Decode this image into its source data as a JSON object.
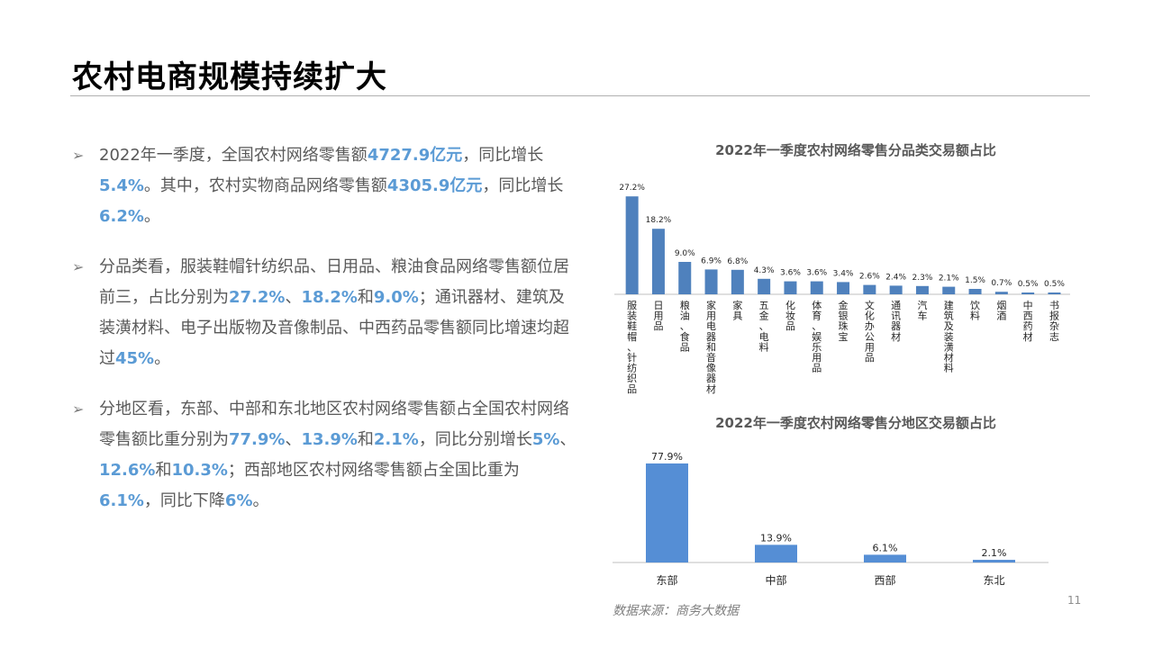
{
  "slide": {
    "title": "农村电商规模持续扩大",
    "page_number": "11",
    "source": "数据来源：商务大数据"
  },
  "bullets": [
    {
      "segments": [
        {
          "text": "2022年一季度，全国农村网络零售额"
        },
        {
          "text": "4727.9亿元",
          "hl": true
        },
        {
          "text": "，同比增长"
        },
        {
          "text": "5.4%",
          "hl": true
        },
        {
          "text": "。其中，农村实物商品网络零售额"
        },
        {
          "text": "4305.9亿元",
          "hl": true
        },
        {
          "text": "，同比增长"
        },
        {
          "text": "6.2%",
          "hl": true
        },
        {
          "text": "。"
        }
      ]
    },
    {
      "segments": [
        {
          "text": "分品类看，服装鞋帽针纺织品、日用品、粮油食品网络零售额位居前三，占比分别为"
        },
        {
          "text": "27.2%",
          "hl": true
        },
        {
          "text": "、"
        },
        {
          "text": "18.2%",
          "hl": true
        },
        {
          "text": "和"
        },
        {
          "text": "9.0%",
          "hl": true
        },
        {
          "text": "；通讯器材、建筑及装潢材料、电子出版物及音像制品、中西药品零售额同比增速均超过"
        },
        {
          "text": "45%",
          "hl": true
        },
        {
          "text": "。"
        }
      ]
    },
    {
      "segments": [
        {
          "text": "分地区看，东部、中部和东北地区农村网络零售额占全国农村网络零售额比重分别为"
        },
        {
          "text": "77.9%",
          "hl": true
        },
        {
          "text": "、"
        },
        {
          "text": "13.9%",
          "hl": true
        },
        {
          "text": "和"
        },
        {
          "text": "2.1%",
          "hl": true
        },
        {
          "text": "，同比分别增长"
        },
        {
          "text": "5%",
          "hl": true
        },
        {
          "text": "、"
        },
        {
          "text": "12.6%",
          "hl": true
        },
        {
          "text": "和"
        },
        {
          "text": "10.3%",
          "hl": true
        },
        {
          "text": "；西部地区农村网络零售额占全国比重为"
        },
        {
          "text": "6.1%",
          "hl": true
        },
        {
          "text": "，同比下降"
        },
        {
          "text": "6%",
          "hl": true
        },
        {
          "text": "。"
        }
      ]
    }
  ],
  "colors": {
    "bar": "#4f81bd",
    "bar_region": "#558ed5",
    "highlight": "#5b9bd5",
    "axis": "#bfbfbf"
  },
  "chart_data": [
    {
      "type": "bar",
      "title": "2022年一季度农村网络零售分品类交易额占比",
      "categories": [
        "服装鞋帽、针纺织品",
        "日用品",
        "粮油、食品",
        "家用电器和音像器材",
        "家具",
        "五金、电料",
        "化妆品",
        "体育、娱乐用品",
        "金银珠宝",
        "文化办公用品",
        "通讯器材",
        "汽车",
        "建筑及装潢材料",
        "饮料",
        "烟酒",
        "中西药材",
        "书报杂志"
      ],
      "values": [
        27.2,
        18.2,
        9.0,
        6.9,
        6.8,
        4.3,
        3.6,
        3.6,
        3.4,
        2.6,
        2.4,
        2.3,
        2.1,
        1.5,
        0.7,
        0.5,
        0.5
      ],
      "data_labels": [
        "27.2%",
        "18.2%",
        "9.0%",
        "6.9%",
        "6.8%",
        "4.3%",
        "3.6%",
        "3.6%",
        "3.4%",
        "2.6%",
        "2.4%",
        "2.3%",
        "2.1%",
        "1.5%",
        "0.7%",
        "0.5%",
        "0.5%"
      ],
      "unit": "%",
      "category_label_orientation": "vertical",
      "ylim": [
        0,
        28
      ],
      "grid": false,
      "legend": "none"
    },
    {
      "type": "bar",
      "title": "2022年一季度农村网络零售分地区交易额占比",
      "categories": [
        "东部",
        "中部",
        "西部",
        "东北"
      ],
      "values": [
        77.9,
        13.9,
        6.1,
        2.1
      ],
      "data_labels": [
        "77.9%",
        "13.9%",
        "6.1%",
        "2.1%"
      ],
      "unit": "%",
      "ylim": [
        0,
        80
      ],
      "grid": false,
      "legend": "none"
    }
  ]
}
